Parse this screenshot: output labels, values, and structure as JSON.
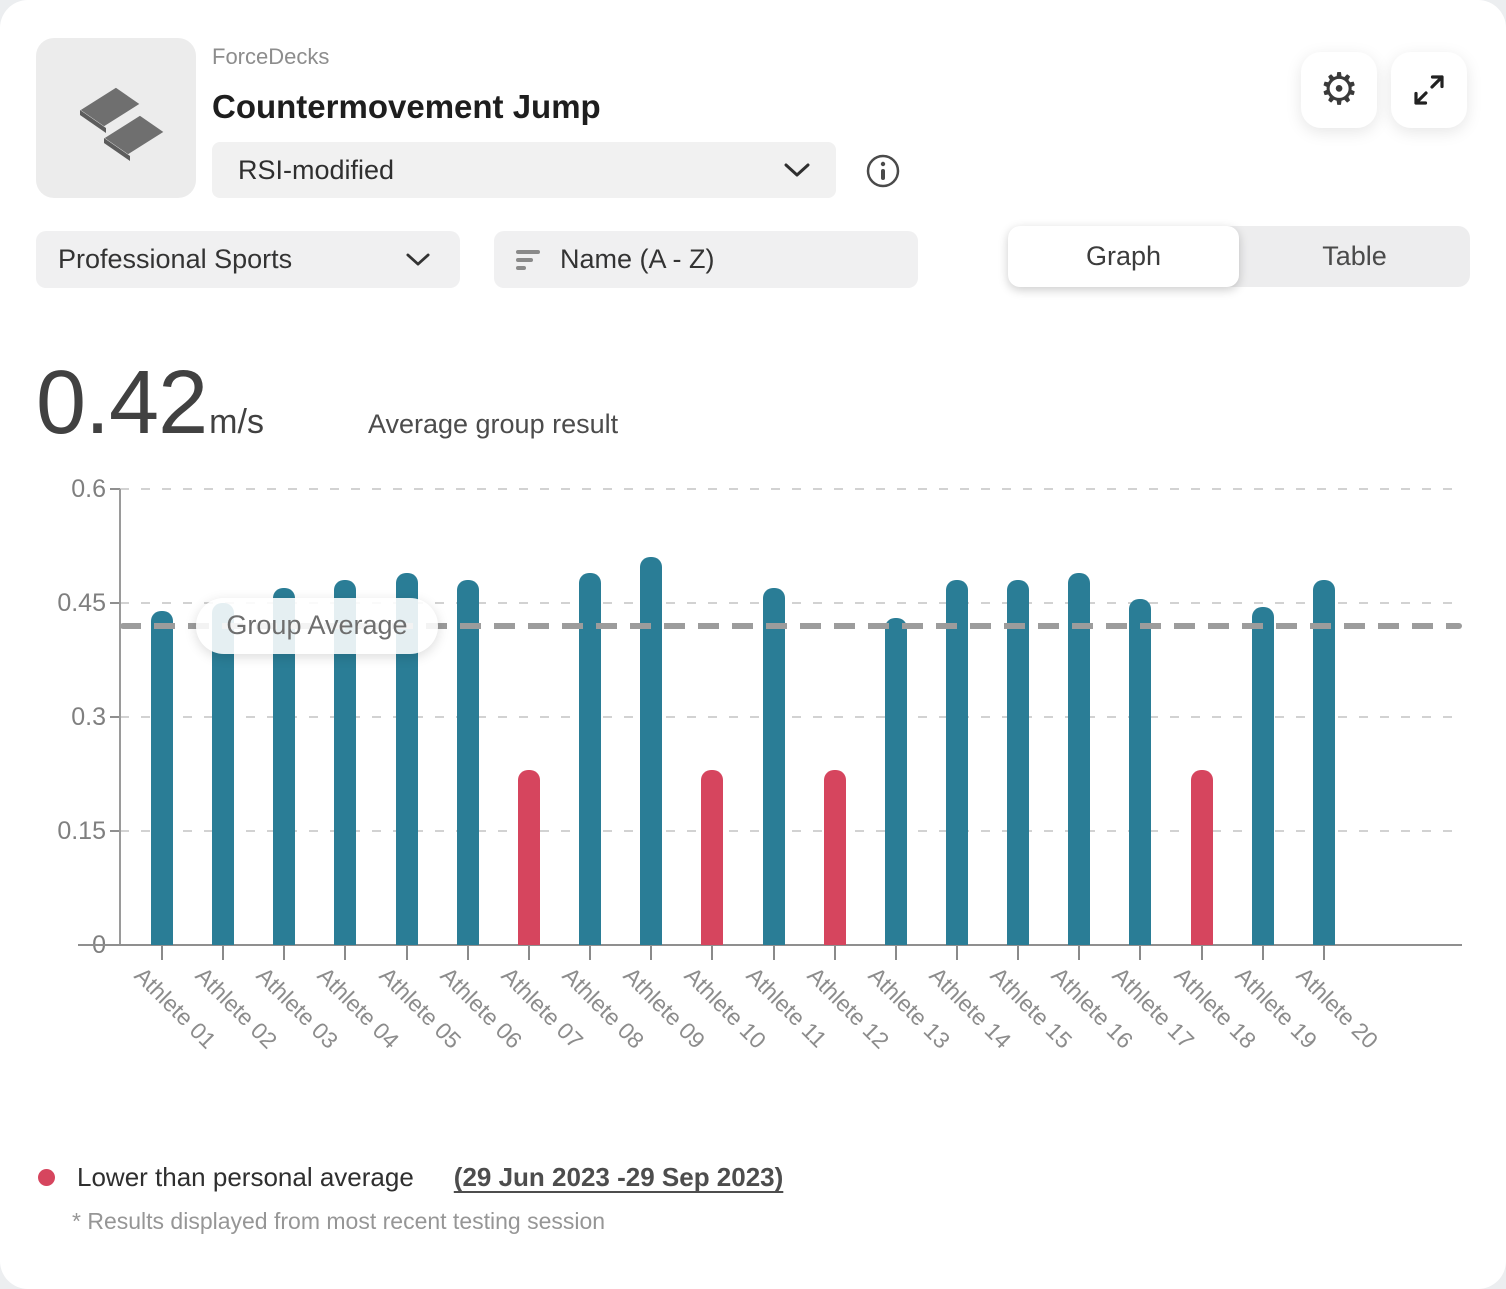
{
  "header": {
    "app_name": "ForceDecks",
    "title": "Countermovement Jump",
    "metric_dropdown": "RSI-modified"
  },
  "filters": {
    "group": "Professional Sports",
    "sort": "Name (A - Z)",
    "views": [
      "Graph",
      "Table"
    ],
    "active_view": "Graph"
  },
  "summary": {
    "value": "0.42",
    "unit": "m/s",
    "label": "Average group result"
  },
  "chart_data": {
    "type": "bar",
    "title": "",
    "xlabel": "",
    "ylabel": "",
    "categories": [
      "Athlete 01",
      "Athlete 02",
      "Athlete 03",
      "Athlete 04",
      "Athlete 05",
      "Athlete 06",
      "Athlete 07",
      "Athlete 08",
      "Athlete 09",
      "Athlete 10",
      "Athlete 11",
      "Athlete 12",
      "Athlete 13",
      "Athlete 14",
      "Athlete 15",
      "Athlete 16",
      "Athlete 17",
      "Athlete 18",
      "Athlete 19",
      "Athlete 20"
    ],
    "values": [
      0.44,
      0.45,
      0.47,
      0.48,
      0.49,
      0.48,
      0.23,
      0.49,
      0.51,
      0.23,
      0.47,
      0.23,
      0.43,
      0.48,
      0.48,
      0.49,
      0.455,
      0.23,
      0.445,
      0.48
    ],
    "below_average": [
      false,
      false,
      false,
      false,
      false,
      false,
      true,
      false,
      false,
      true,
      false,
      true,
      false,
      false,
      false,
      false,
      false,
      true,
      false,
      false
    ],
    "group_average": 0.42,
    "group_average_label": "Group Average",
    "y_ticks": [
      0,
      0.15,
      0.3,
      0.45,
      0.6
    ],
    "ylim": [
      0,
      0.6
    ],
    "grid": "horizontal-dashed",
    "legend_position": "bottom-left",
    "bar_color": "#2A7D96",
    "below_color": "#D6455E",
    "avg_line_color": "#9c9c9c"
  },
  "legend": {
    "marker_color": "#D6455E",
    "label": "Lower than personal average",
    "date_range": "(29 Jun 2023 -29 Sep 2023)",
    "footnote": "* Results displayed from most recent testing session"
  }
}
